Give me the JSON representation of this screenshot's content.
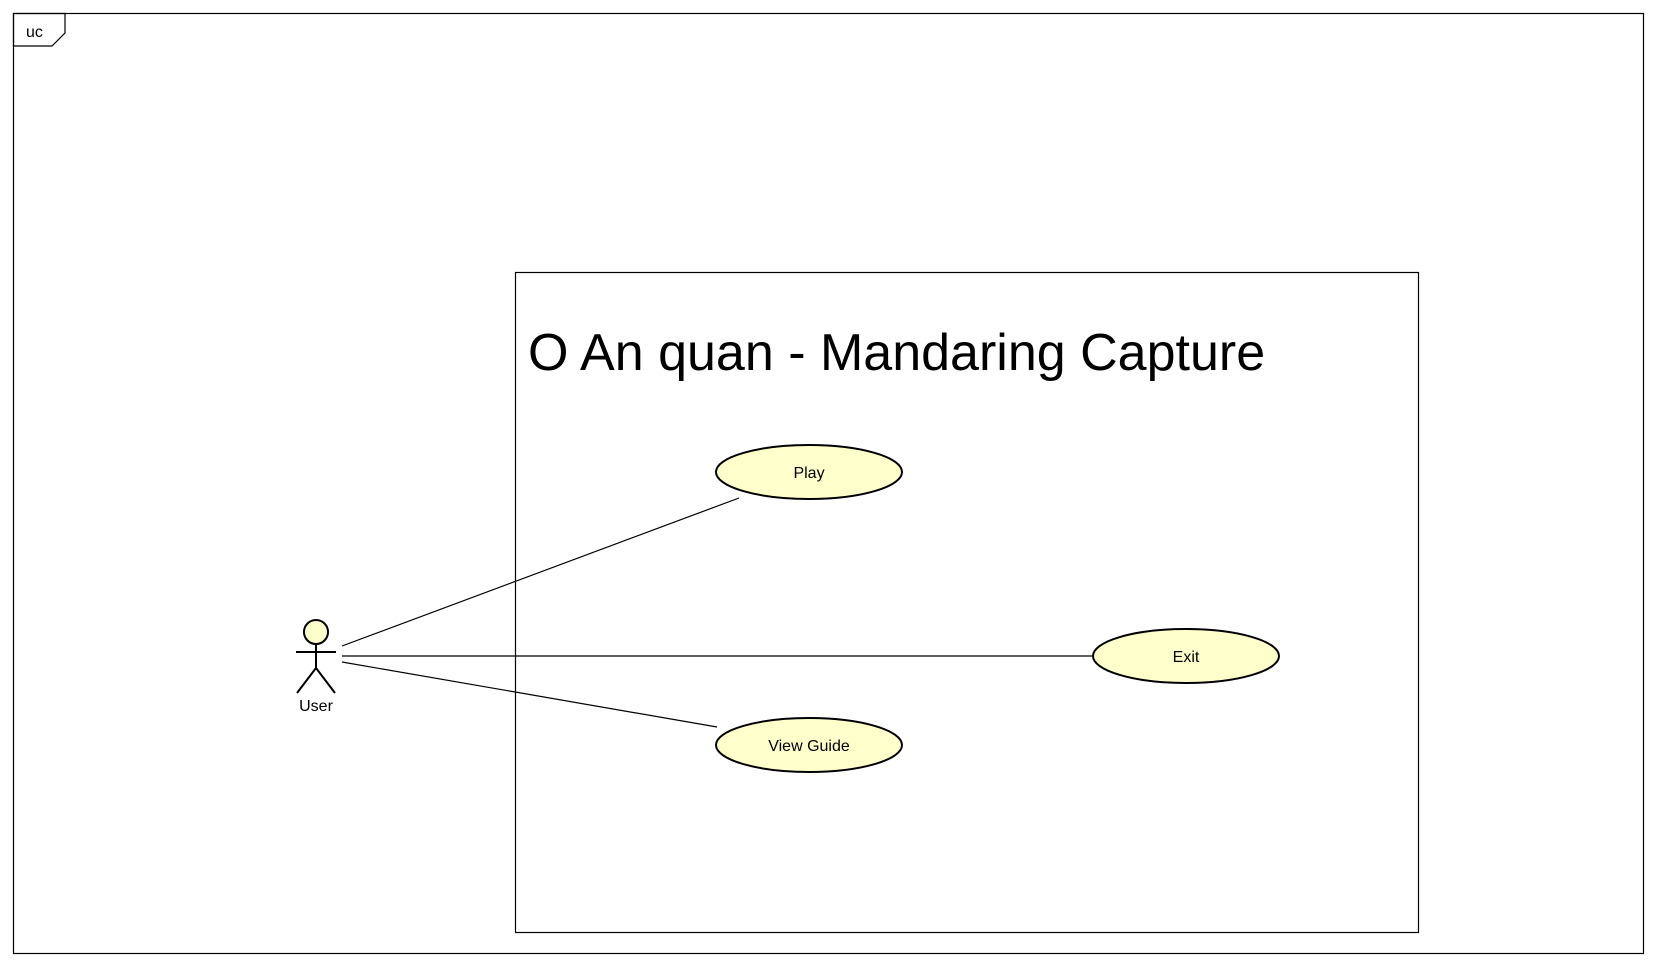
{
  "frame": {
    "tag": "uc"
  },
  "system": {
    "title": "O An quan  - Mandaring Capture"
  },
  "actor": {
    "name": "User"
  },
  "use_cases": {
    "play": "Play",
    "exit": "Exit",
    "view_guide": "View Guide"
  },
  "colors": {
    "usecase_fill": "#ffffcc",
    "actor_fill": "#ffffcc",
    "stroke": "#000000",
    "background": "#ffffff"
  }
}
